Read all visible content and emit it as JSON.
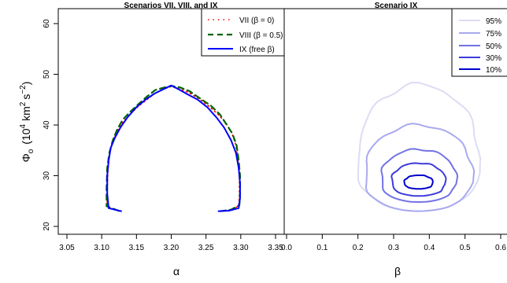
{
  "chart_data": [
    {
      "type": "line",
      "title": "Scenarios VII, VIII, and IX",
      "xlabel": "α",
      "ylabel": "Φ",
      "ylabel_sub": "o",
      "ylabel_unit_open": "(10",
      "ylabel_unit_exp": "4",
      "ylabel_unit_mid": "km",
      "ylabel_unit_exp2": "2",
      "ylabel_unit_tail": "s",
      "ylabel_unit_exp3": "−2",
      "ylabel_unit_close": ")",
      "xlim": [
        3.05,
        3.35
      ],
      "ylim": [
        19,
        61
      ],
      "xticks": [
        "3.05",
        "3.10",
        "3.15",
        "3.20",
        "3.25",
        "3.30",
        "3.35"
      ],
      "yticks": [
        "20",
        "30",
        "40",
        "50",
        "60"
      ],
      "legend_position": "top-right",
      "series": [
        {
          "name": "VII (β = 0)",
          "color": "#ff0000",
          "style": "dotted",
          "points": [
            [
              3.125,
              23.0
            ],
            [
              3.108,
              23.8
            ],
            [
              3.108,
              27.0
            ],
            [
              3.109,
              31.0
            ],
            [
              3.111,
              34.0
            ],
            [
              3.115,
              36.5
            ],
            [
              3.121,
              38.5
            ],
            [
              3.13,
              40.5
            ],
            [
              3.14,
              42.0
            ],
            [
              3.152,
              43.6
            ],
            [
              3.165,
              45.0
            ],
            [
              3.178,
              46.4
            ],
            [
              3.19,
              47.1
            ],
            [
              3.2,
              47.6
            ],
            [
              3.212,
              47.1
            ],
            [
              3.225,
              46.4
            ],
            [
              3.24,
              45.2
            ],
            [
              3.255,
              43.6
            ],
            [
              3.268,
              42.0
            ],
            [
              3.278,
              40.5
            ],
            [
              3.287,
              38.5
            ],
            [
              3.293,
              36.0
            ],
            [
              3.296,
              33.0
            ],
            [
              3.298,
              29.5
            ],
            [
              3.298,
              26.0
            ],
            [
              3.297,
              24.0
            ],
            [
              3.285,
              23.2
            ],
            [
              3.272,
              23.0
            ]
          ]
        },
        {
          "name": "VIII (β = 0.5)",
          "color": "#006400",
          "style": "dashed",
          "points": [
            [
              3.124,
              23.1
            ],
            [
              3.107,
              24.0
            ],
            [
              3.107,
              27.5
            ],
            [
              3.108,
              31.5
            ],
            [
              3.111,
              34.5
            ],
            [
              3.116,
              37.0
            ],
            [
              3.122,
              39.0
            ],
            [
              3.13,
              41.0
            ],
            [
              3.141,
              42.6
            ],
            [
              3.152,
              44.0
            ],
            [
              3.165,
              45.6
            ],
            [
              3.177,
              46.9
            ],
            [
              3.19,
              47.4
            ],
            [
              3.201,
              47.7
            ],
            [
              3.213,
              47.4
            ],
            [
              3.226,
              46.7
            ],
            [
              3.242,
              45.2
            ],
            [
              3.257,
              43.8
            ],
            [
              3.27,
              42.1
            ],
            [
              3.28,
              40.0
            ],
            [
              3.288,
              38.3
            ],
            [
              3.294,
              36.0
            ],
            [
              3.297,
              33.0
            ],
            [
              3.299,
              30.0
            ],
            [
              3.299,
              26.5
            ],
            [
              3.298,
              24.2
            ],
            [
              3.286,
              23.3
            ],
            [
              3.271,
              23.0
            ]
          ]
        },
        {
          "name": "IX (free  β)",
          "color": "#0000ff",
          "style": "solid",
          "points": [
            [
              3.128,
              23.0
            ],
            [
              3.11,
              23.6
            ],
            [
              3.108,
              26.5
            ],
            [
              3.108,
              30.0
            ],
            [
              3.11,
              33.0
            ],
            [
              3.113,
              35.5
            ],
            [
              3.119,
              37.5
            ],
            [
              3.127,
              39.5
            ],
            [
              3.137,
              41.5
            ],
            [
              3.15,
              43.5
            ],
            [
              3.163,
              45.0
            ],
            [
              3.176,
              46.2
            ],
            [
              3.188,
              47.0
            ],
            [
              3.2,
              47.8
            ],
            [
              3.211,
              47.0
            ],
            [
              3.224,
              46.0
            ],
            [
              3.238,
              45.0
            ],
            [
              3.252,
              43.5
            ],
            [
              3.265,
              41.5
            ],
            [
              3.276,
              39.5
            ],
            [
              3.286,
              37.0
            ],
            [
              3.293,
              34.5
            ],
            [
              3.297,
              31.5
            ],
            [
              3.299,
              28.5
            ],
            [
              3.299,
              25.5
            ],
            [
              3.297,
              23.6
            ],
            [
              3.283,
              23.1
            ],
            [
              3.268,
              23.0
            ]
          ]
        }
      ]
    },
    {
      "type": "contour",
      "title": "Scenario IX",
      "xlabel": "β",
      "ylabel": "",
      "xlim": [
        0.0,
        0.65
      ],
      "ylim": [
        19,
        61
      ],
      "xticks": [
        "0.0",
        "0.1",
        "0.2",
        "0.3",
        "0.4",
        "0.5",
        "0.6"
      ],
      "legend_position": "top-right",
      "contours": [
        {
          "name": "95%",
          "color": "#dcdcf5",
          "cx": 0.37,
          "cy": 33.5,
          "rx": 0.17,
          "top": 48.0,
          "bottom": 23.0
        },
        {
          "name": "75%",
          "color": "#a9a9ef",
          "cx": 0.37,
          "cy": 31.0,
          "rx": 0.15,
          "top": 40.0,
          "bottom": 23.0
        },
        {
          "name": "50%",
          "color": "#7272e6",
          "cx": 0.37,
          "cy": 29.8,
          "rx": 0.105,
          "top": 35.2,
          "bottom": 24.8
        },
        {
          "name": "30%",
          "color": "#3c3cdb",
          "cx": 0.37,
          "cy": 29.2,
          "rx": 0.075,
          "top": 32.5,
          "bottom": 26.0
        },
        {
          "name": "10%",
          "color": "#0000cd",
          "cx": 0.37,
          "cy": 28.8,
          "rx": 0.04,
          "top": 30.1,
          "bottom": 27.4
        }
      ]
    }
  ]
}
